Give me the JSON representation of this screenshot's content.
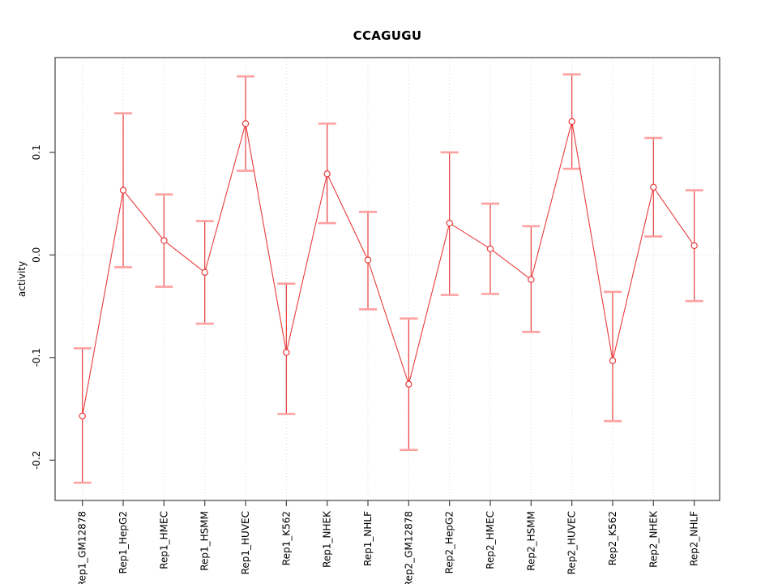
{
  "title": "CCAGUGU",
  "y_axis_label": "activity",
  "chart_data": {
    "type": "line",
    "title": "CCAGUGU",
    "xlabel": "",
    "ylabel": "activity",
    "categories": [
      "Rep1_GM12878",
      "Rep1_HepG2",
      "Rep1_HMEC",
      "Rep1_HSMM",
      "Rep1_HUVEC",
      "Rep1_K562",
      "Rep1_NHEK",
      "Rep1_NHLF",
      "Rep2_GM12878",
      "Rep2_HepG2",
      "Rep2_HMEC",
      "Rep2_HSMM",
      "Rep2_HUVEC",
      "Rep2_K562",
      "Rep2_NHEK",
      "Rep2_NHLF"
    ],
    "series": [
      {
        "name": "activity",
        "marker": "open-circle",
        "values": [
          -0.157,
          0.063,
          0.014,
          -0.017,
          0.128,
          -0.095,
          0.079,
          -0.005,
          -0.126,
          0.031,
          0.006,
          -0.024,
          0.13,
          -0.103,
          0.066,
          0.009
        ],
        "err_high": [
          -0.091,
          0.138,
          0.059,
          0.033,
          0.174,
          -0.028,
          0.128,
          0.042,
          -0.062,
          0.1,
          0.05,
          0.028,
          0.176,
          -0.036,
          0.114,
          0.063
        ],
        "err_low": [
          -0.222,
          -0.012,
          -0.031,
          -0.067,
          0.082,
          -0.155,
          0.031,
          -0.053,
          -0.19,
          -0.039,
          -0.038,
          -0.075,
          0.084,
          -0.162,
          0.018,
          -0.045
        ]
      }
    ],
    "y_ticks": [
      0.1,
      0.0,
      -0.1,
      -0.2
    ],
    "y_tick_labels": [
      "0.1",
      "0.0",
      "-0.1",
      "-0.2"
    ],
    "ylim": [
      -0.24,
      0.192
    ],
    "grid": {
      "vertical": "dotted line at every category",
      "horizontal": "dotted line at y=0 only"
    },
    "legend": "none",
    "colors": {
      "line": "#e93b3b",
      "cap": "#ffa0a0",
      "grid": "#d8d8d8",
      "axis": "#444444",
      "text": "#000000"
    }
  }
}
